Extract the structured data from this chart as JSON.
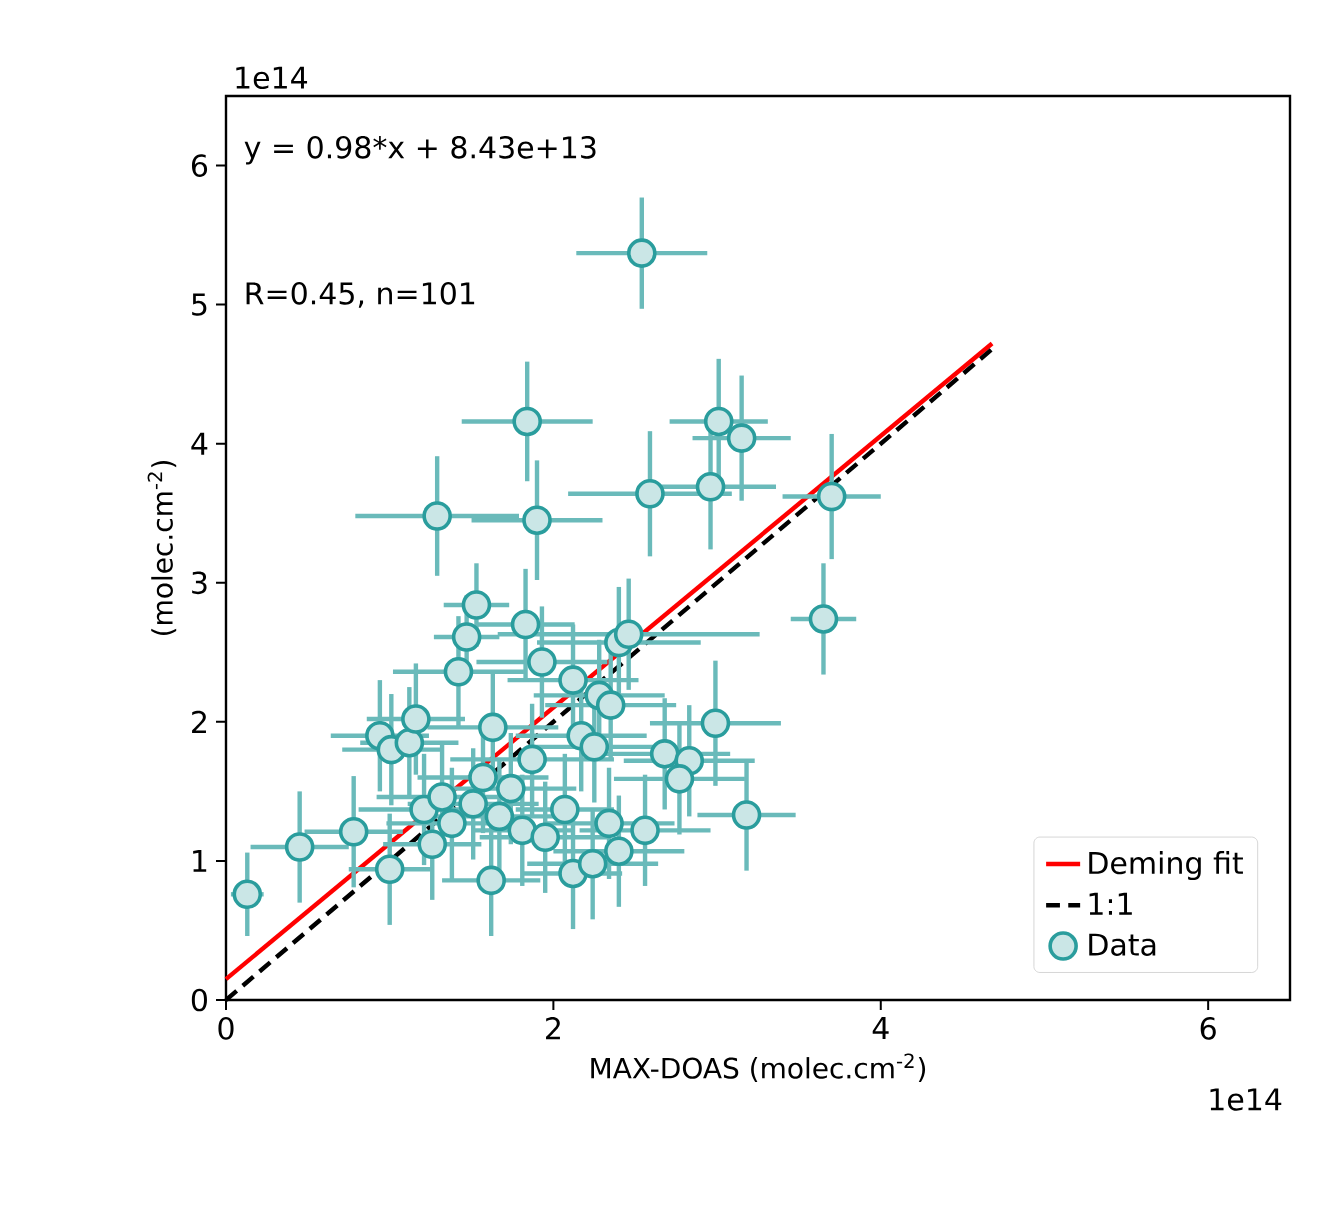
{
  "chart_data": {
    "type": "scatter",
    "xlabel": "MAX-DOAS (molec.cm$^{-2}$)",
    "ylabel": "(molec.cm$^{-2}$)",
    "annotations": [
      "y = 0.98*x + 8.43e+13",
      "R=0.45, n=101",
      "1e14",
      "1e14"
    ],
    "xlim": [
      0,
      6.5
    ],
    "ylim": [
      0,
      6.5
    ],
    "xticks": [
      0,
      2,
      4,
      6
    ],
    "yticks": [
      0,
      1,
      2,
      3,
      4,
      5,
      6
    ],
    "legend": "bottom right",
    "marker": "circle",
    "series": [
      {
        "name": "Deming fit",
        "type": "line",
        "color": "#ff0000",
        "line_style": "solid",
        "marker": "none",
        "x": [
          0,
          4.68
        ],
        "values": [
          0.15,
          4.72
        ]
      },
      {
        "name": "1:1",
        "type": "line",
        "color": "#000000",
        "line_style": "dashed",
        "marker": "none",
        "x": [
          0,
          4.68
        ],
        "values": [
          0,
          4.68
        ]
      },
      {
        "name": "Data",
        "color": "#2a9d9d",
        "x": [
          0.13,
          0.45,
          0.78,
          1.0,
          0.94,
          1.01,
          1.12,
          1.16,
          1.21,
          1.26,
          1.32,
          1.38,
          1.51,
          1.57,
          1.63,
          1.62,
          1.67,
          1.74,
          1.81,
          1.87,
          1.95,
          2.07,
          2.17,
          2.25,
          2.12,
          2.24,
          2.34,
          2.28,
          1.42,
          1.93,
          2.12,
          1.84,
          1.29,
          1.9,
          1.53,
          1.47,
          1.83,
          2.4,
          3.01,
          3.15,
          2.59,
          2.96,
          3.7,
          3.65,
          2.46,
          2.99,
          2.68,
          2.83,
          2.77,
          3.18,
          2.4,
          2.56,
          2.35,
          2.54
        ],
        "values": [
          0.76,
          1.1,
          1.21,
          0.94,
          1.9,
          1.8,
          1.85,
          2.02,
          1.37,
          1.12,
          1.46,
          1.27,
          1.41,
          1.6,
          1.96,
          0.86,
          1.32,
          1.52,
          1.22,
          1.73,
          1.17,
          1.37,
          1.9,
          1.82,
          0.91,
          0.98,
          1.27,
          2.19,
          2.36,
          2.43,
          2.3,
          4.16,
          3.48,
          3.45,
          2.84,
          2.61,
          2.7,
          2.57,
          4.16,
          4.04,
          3.64,
          3.69,
          3.62,
          2.74,
          2.63,
          1.99,
          1.77,
          1.72,
          1.59,
          1.33,
          1.07,
          1.22,
          2.12,
          5.37
        ],
        "xerrors": [
          0.1,
          0.3,
          0.3,
          0.25,
          0.3,
          0.3,
          0.3,
          0.3,
          0.4,
          0.3,
          0.4,
          0.4,
          0.4,
          0.4,
          0.4,
          0.3,
          0.4,
          0.4,
          0.3,
          0.5,
          0.4,
          0.3,
          0.4,
          0.4,
          0.3,
          0.4,
          0.4,
          0.4,
          0.4,
          0.4,
          0.4,
          0.4,
          0.5,
          0.4,
          0.2,
          0.2,
          0.3,
          0.5,
          0.3,
          0.3,
          0.5,
          0.4,
          0.3,
          0.2,
          0.8,
          0.4,
          0.4,
          0.4,
          0.4,
          0.3,
          0.4,
          0.4,
          0.4,
          0.4
        ],
        "errors": [
          0.3,
          0.4,
          0.4,
          0.4,
          0.4,
          0.4,
          0.4,
          0.4,
          0.4,
          0.4,
          0.4,
          0.4,
          0.4,
          0.4,
          0.4,
          0.4,
          0.4,
          0.4,
          0.4,
          0.4,
          0.4,
          0.4,
          0.4,
          0.4,
          0.4,
          0.4,
          0.4,
          0.4,
          0.4,
          0.4,
          0.4,
          0.43,
          0.43,
          0.43,
          0.3,
          0.3,
          0.4,
          0.4,
          0.45,
          0.45,
          0.45,
          0.45,
          0.45,
          0.4,
          0.4,
          0.45,
          0.4,
          0.4,
          0.4,
          0.4,
          0.4,
          0.4,
          0.4,
          0.4
        ]
      }
    ]
  }
}
